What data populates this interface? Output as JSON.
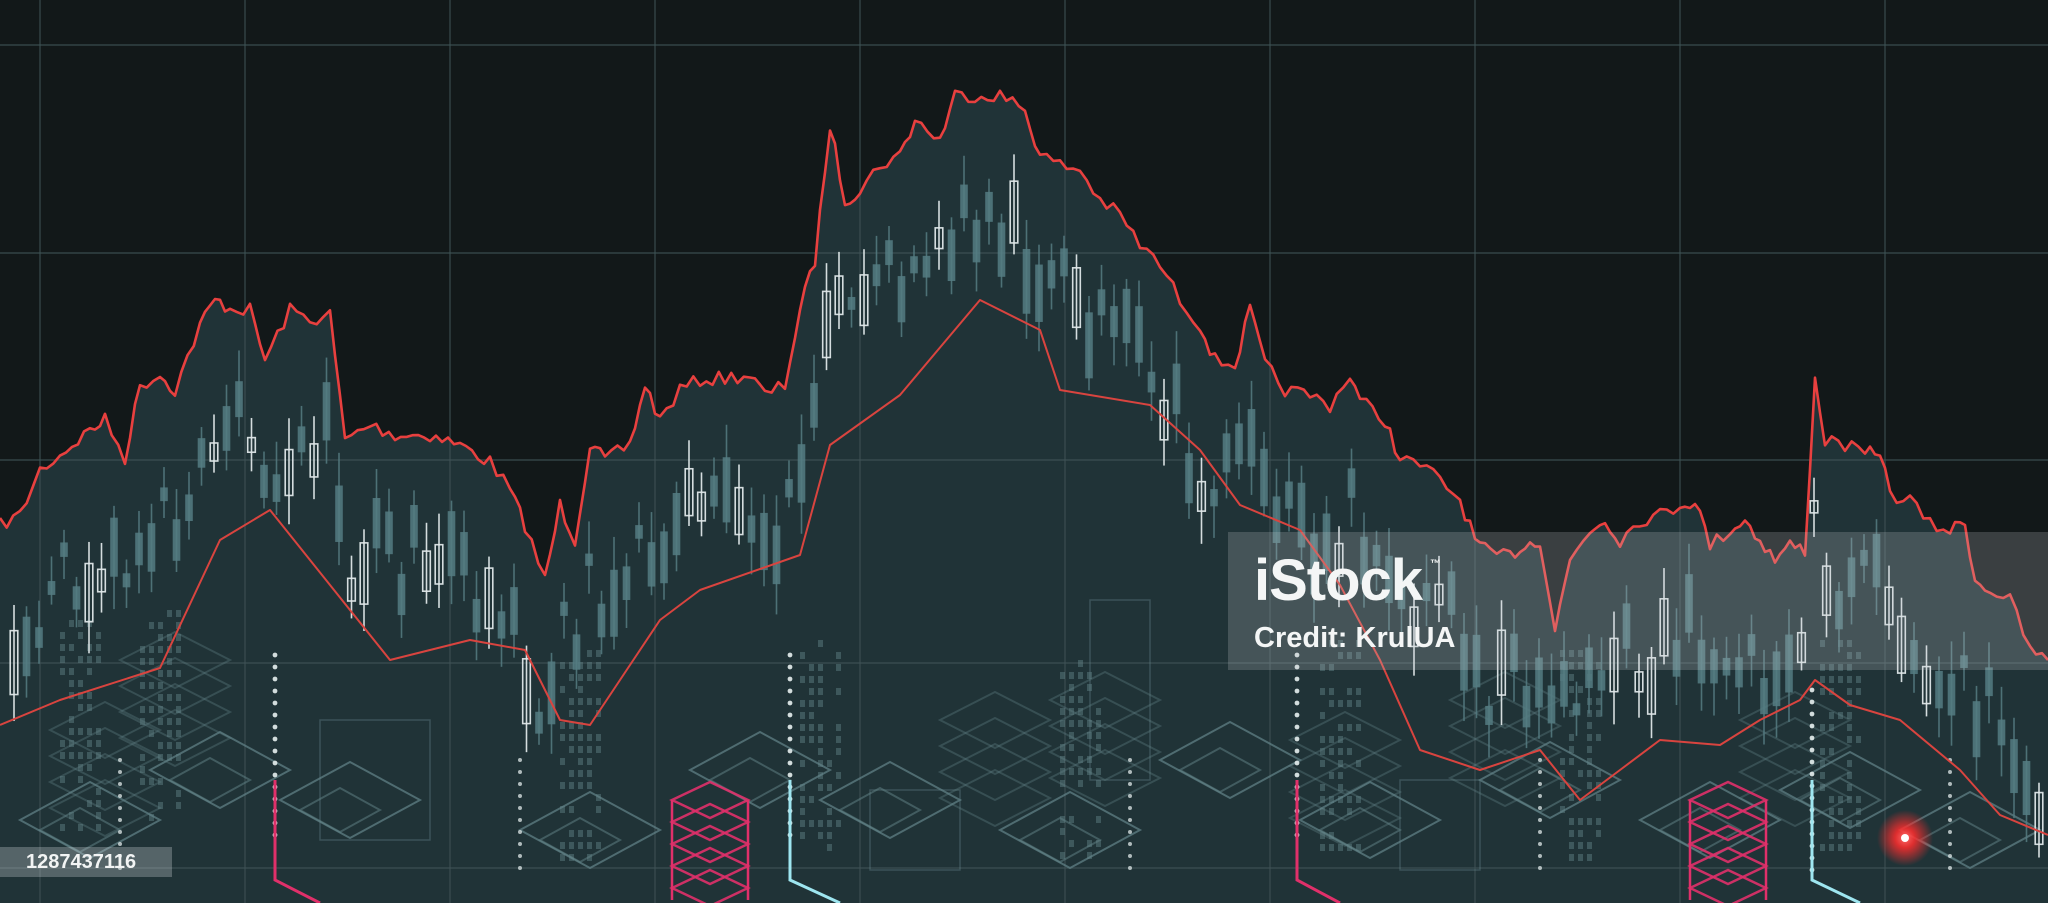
{
  "watermark": {
    "logo_text": "iStock",
    "logo_mark": "™",
    "credit_text": "Credit: KrulUA"
  },
  "image_id": "1287437116",
  "colors": {
    "background": "#121819",
    "grid": "#3f5256",
    "price_line": "#e8403f",
    "moving_average": "#d9443f",
    "area_fill": "#22363a",
    "candle_dark": "#557c82",
    "candle_light": "#dfe7e8",
    "circuit": "#64858a",
    "accent_pink": "#e0306a",
    "accent_cyan": "#9ee6f0",
    "glow_dot": "#ff3b3b"
  }
}
